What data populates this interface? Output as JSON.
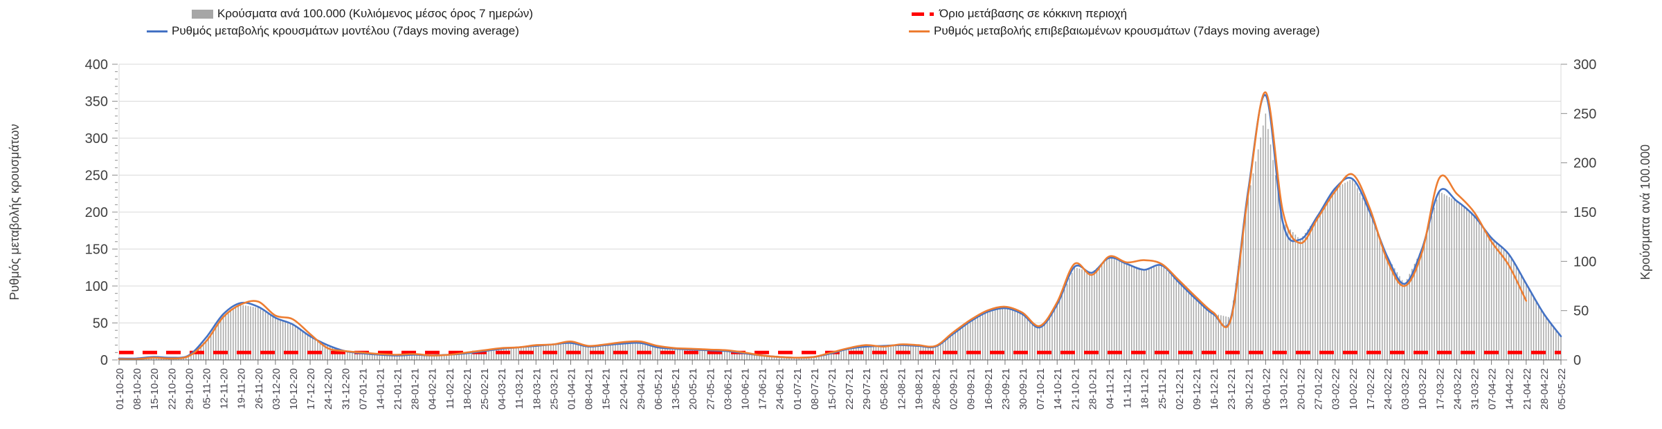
{
  "legend": {
    "items": [
      {
        "id": "cases-bars",
        "label": "Κρούσματα ανά 100.000 (Κυλιόμενος μέσος όρος 7 ημερών)",
        "color": "#a6a6a6",
        "swatch": "bar"
      },
      {
        "id": "model-line",
        "label": "Ρυθμός μεταβολής κρουσμάτων μοντέλου (7days moving average)",
        "color": "#4472c4",
        "swatch": "line"
      },
      {
        "id": "threshold-line",
        "label": "Όριο μετάβασης σε κόκκινη περιοχή",
        "color": "#ff0000",
        "swatch": "dash"
      },
      {
        "id": "confirmed-line",
        "label": "Ρυθμός μεταβολής επιβεβαιωμένων κρουσμάτων (7days moving average)",
        "color": "#ed7d31",
        "swatch": "line"
      }
    ]
  },
  "chart_data": {
    "type": "combo-bar-line",
    "title": "",
    "grid": true,
    "legend_position": "top",
    "note": "weekly sampling of a daily series; bars are daily values interpolated between weekly samples",
    "x": [
      "01-10-20",
      "08-10-20",
      "15-10-20",
      "22-10-20",
      "29-10-20",
      "05-11-20",
      "12-11-20",
      "19-11-20",
      "26-11-20",
      "03-12-20",
      "10-12-20",
      "17-12-20",
      "24-12-20",
      "31-12-20",
      "07-01-21",
      "14-01-21",
      "21-01-21",
      "28-01-21",
      "04-02-21",
      "11-02-21",
      "18-02-21",
      "25-02-21",
      "04-03-21",
      "11-03-21",
      "18-03-21",
      "25-03-21",
      "01-04-21",
      "08-04-21",
      "15-04-21",
      "22-04-21",
      "29-04-21",
      "06-05-21",
      "13-05-21",
      "20-05-21",
      "27-05-21",
      "03-06-21",
      "10-06-21",
      "17-06-21",
      "24-06-21",
      "01-07-21",
      "08-07-21",
      "15-07-21",
      "22-07-21",
      "29-07-21",
      "05-08-21",
      "12-08-21",
      "19-08-21",
      "26-08-21",
      "02-09-21",
      "09-09-21",
      "16-09-21",
      "23-09-21",
      "30-09-21",
      "07-10-21",
      "14-10-21",
      "21-10-21",
      "28-10-21",
      "04-11-21",
      "11-11-21",
      "18-11-21",
      "25-11-21",
      "02-12-21",
      "09-12-21",
      "16-12-21",
      "23-12-21",
      "30-12-21",
      "06-01-22",
      "13-01-22",
      "20-01-22",
      "27-01-22",
      "03-02-22",
      "10-02-22",
      "17-02-22",
      "24-02-22",
      "03-03-22",
      "10-03-22",
      "17-03-22",
      "24-03-22",
      "31-03-22",
      "07-04-22",
      "14-04-22",
      "21-04-22",
      "28-04-22",
      "05-05-22"
    ],
    "left_axis": {
      "label": "Ρυθμός μεταβολής κρουσμάτων",
      "min": 0,
      "max": 400,
      "step": 50,
      "minor_step": 10
    },
    "right_axis": {
      "label": "Κρούσματα ανά 100.000",
      "min": 0,
      "max": 300,
      "step": 50
    },
    "series": [
      {
        "name": "Κρούσματα ανά 100.000 (Κυλιόμενος μέσος όρος 7 ημερών)",
        "type": "bar",
        "axis": "right",
        "color": "#a6a6a6",
        "values": [
          1,
          1,
          3,
          2,
          4,
          20,
          45,
          56,
          53,
          42,
          36,
          24,
          15,
          9,
          7,
          5,
          5,
          5,
          5,
          5,
          7,
          9,
          11,
          13,
          14,
          16,
          17,
          14,
          15,
          17,
          17,
          13,
          11,
          11,
          10,
          9,
          7,
          5,
          3,
          2,
          3,
          7,
          11,
          14,
          14,
          15,
          14,
          14,
          26,
          38,
          49,
          53,
          47,
          33,
          55,
          94,
          89,
          104,
          98,
          92,
          96,
          79,
          62,
          47,
          43,
          165,
          250,
          140,
          122,
          146,
          174,
          184,
          150,
          105,
          77,
          113,
          171,
          161,
          146,
          124,
          107,
          77,
          47,
          24
        ]
      },
      {
        "name": "Ρυθμός μεταβολής κρουσμάτων μοντέλου (7days moving average)",
        "type": "line",
        "axis": "left",
        "color": "#4472c4",
        "values": [
          2,
          2,
          4,
          3,
          6,
          30,
          62,
          77,
          72,
          57,
          48,
          32,
          20,
          12,
          9,
          7,
          6,
          7,
          6,
          7,
          9,
          12,
          15,
          17,
          19,
          21,
          23,
          18,
          20,
          22,
          23,
          17,
          15,
          14,
          13,
          12,
          9,
          6,
          4,
          3,
          4,
          9,
          15,
          18,
          19,
          20,
          19,
          18,
          35,
          52,
          65,
          70,
          62,
          44,
          75,
          126,
          118,
          138,
          130,
          122,
          128,
          105,
          82,
          62,
          57,
          230,
          358,
          185,
          163,
          195,
          232,
          245,
          200,
          140,
          103,
          150,
          228,
          215,
          195,
          165,
          143,
          103,
          63,
          32
        ]
      },
      {
        "name": "Ρυθμός μεταβολής επιβεβαιωμένων κρουσμάτων (7days moving average)",
        "type": "line",
        "axis": "left",
        "color": "#ed7d31",
        "values": [
          1,
          1,
          3,
          2,
          5,
          25,
          58,
          75,
          79,
          60,
          55,
          35,
          16,
          12,
          10,
          8,
          7,
          8,
          6,
          7,
          10,
          13,
          16,
          17,
          20,
          21,
          25,
          19,
          21,
          24,
          25,
          19,
          16,
          15,
          14,
          13,
          10,
          6,
          4,
          3,
          4,
          10,
          16,
          20,
          18,
          21,
          20,
          19,
          37,
          54,
          67,
          72,
          64,
          46,
          78,
          130,
          115,
          140,
          132,
          135,
          130,
          108,
          85,
          64,
          55,
          225,
          362,
          200,
          158,
          192,
          228,
          251,
          205,
          135,
          100,
          145,
          246,
          225,
          200,
          160,
          128,
          80,
          null,
          null
        ]
      },
      {
        "name": "Όριο μετάβασης σε κόκκινη περιοχή",
        "type": "dashed-constant",
        "axis": "left",
        "color": "#ff0000",
        "constant": 10
      }
    ]
  }
}
